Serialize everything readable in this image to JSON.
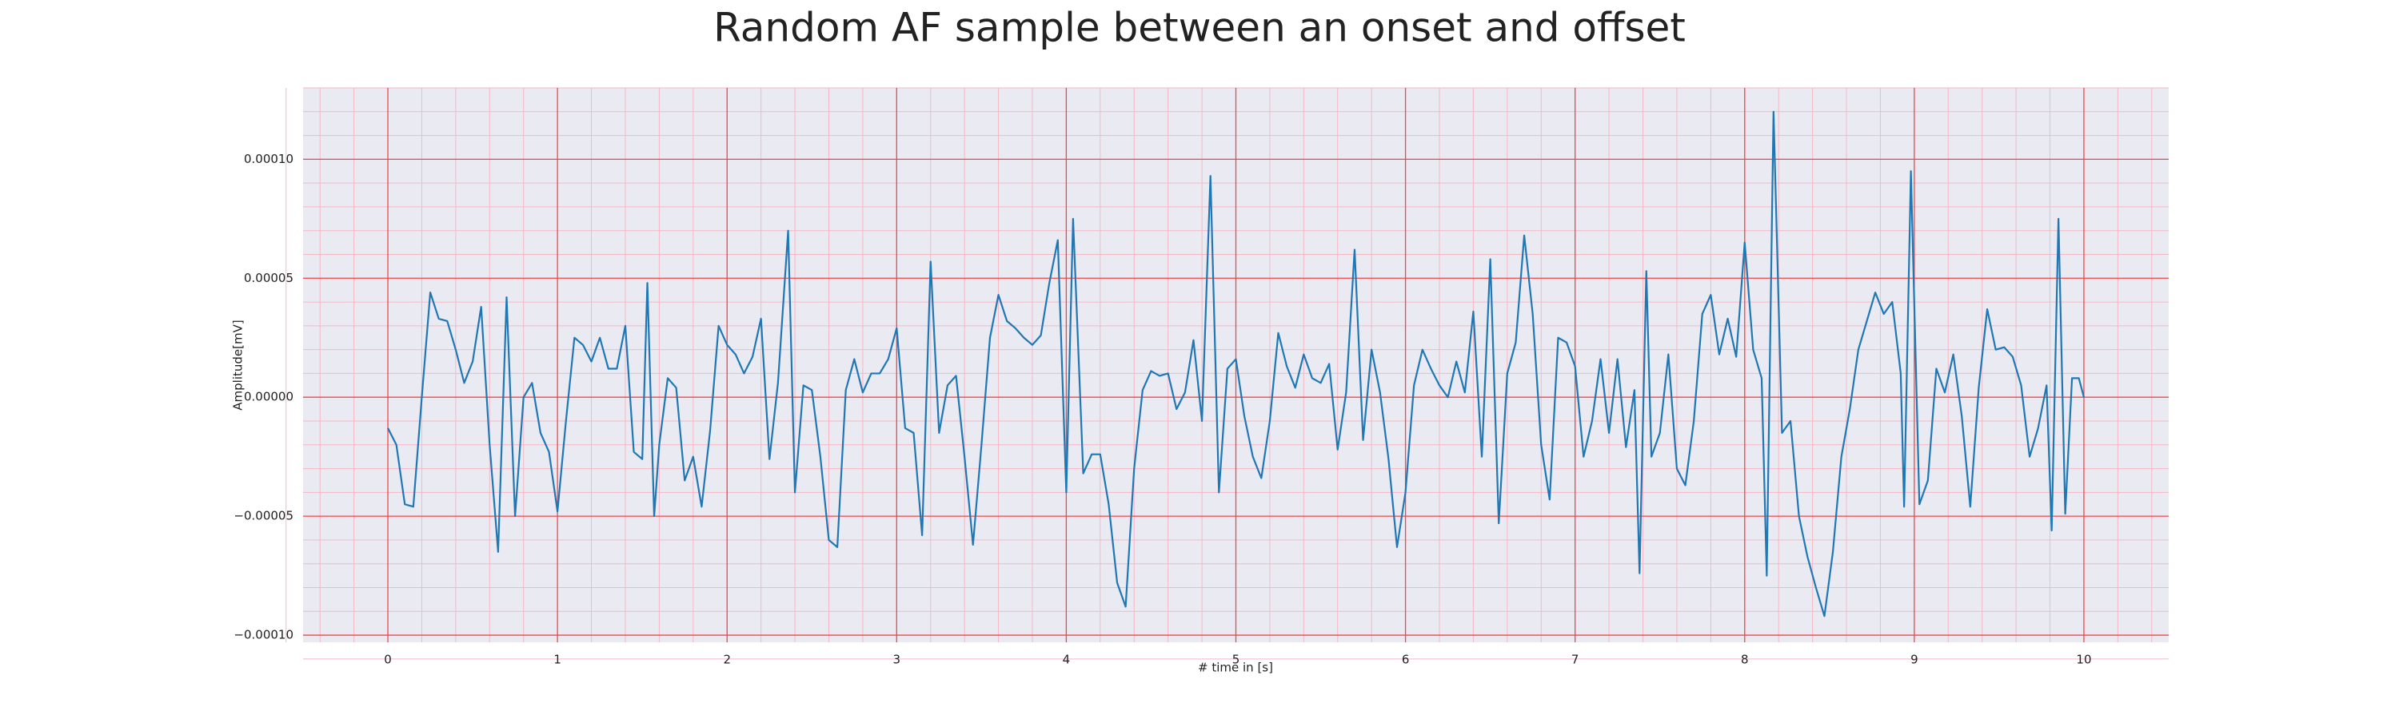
{
  "chart_data": {
    "type": "line",
    "title": "Random AF sample between an onset and offset",
    "x_label": "# time in [s]",
    "y_label": "Amplitude[mV]",
    "color": "#1f77b4",
    "grid": true,
    "minor_grid": true,
    "xlim": [
      -0.5,
      10.5
    ],
    "ylim": [
      -0.000103,
      0.00013
    ],
    "xticks": [
      0,
      1,
      2,
      3,
      4,
      5,
      6,
      7,
      8,
      9,
      10
    ],
    "yticks": [
      {
        "value": -0.0001,
        "label": "−0.00010"
      },
      {
        "value": -5e-05,
        "label": "−0.00005"
      },
      {
        "value": 0,
        "label": "0.00000"
      },
      {
        "value": 5e-05,
        "label": "0.00005"
      },
      {
        "value": 0.0001,
        "label": "0.00010"
      }
    ],
    "x": [
      0,
      0.05,
      0.1,
      0.15,
      0.2,
      0.25,
      0.3,
      0.35,
      0.4,
      0.45,
      0.5,
      0.55,
      0.6,
      0.65,
      0.7,
      0.75,
      0.8,
      0.85,
      0.9,
      0.95,
      1.0,
      1.05,
      1.1,
      1.15,
      1.2,
      1.25,
      1.3,
      1.35,
      1.4,
      1.45,
      1.5,
      1.53,
      1.57,
      1.6,
      1.65,
      1.7,
      1.75,
      1.8,
      1.85,
      1.9,
      1.95,
      2.0,
      2.05,
      2.1,
      2.15,
      2.2,
      2.25,
      2.3,
      2.36,
      2.4,
      2.45,
      2.5,
      2.55,
      2.6,
      2.65,
      2.7,
      2.75,
      2.8,
      2.85,
      2.9,
      2.95,
      3.0,
      3.05,
      3.1,
      3.15,
      3.2,
      3.25,
      3.3,
      3.35,
      3.4,
      3.45,
      3.5,
      3.55,
      3.6,
      3.65,
      3.7,
      3.75,
      3.8,
      3.85,
      3.9,
      3.95,
      4.0,
      4.04,
      4.1,
      4.15,
      4.2,
      4.25,
      4.3,
      4.35,
      4.4,
      4.45,
      4.5,
      4.55,
      4.6,
      4.65,
      4.7,
      4.75,
      4.8,
      4.85,
      4.9,
      4.95,
      5.0,
      5.05,
      5.1,
      5.15,
      5.2,
      5.25,
      5.3,
      5.35,
      5.4,
      5.45,
      5.5,
      5.55,
      5.6,
      5.65,
      5.7,
      5.75,
      5.8,
      5.85,
      5.9,
      5.95,
      6.0,
      6.05,
      6.1,
      6.15,
      6.2,
      6.25,
      6.3,
      6.35,
      6.4,
      6.45,
      6.5,
      6.55,
      6.6,
      6.65,
      6.7,
      6.75,
      6.8,
      6.85,
      6.9,
      6.95,
      7.0,
      7.05,
      7.1,
      7.15,
      7.2,
      7.25,
      7.3,
      7.35,
      7.38,
      7.42,
      7.45,
      7.5,
      7.55,
      7.6,
      7.65,
      7.7,
      7.75,
      7.8,
      7.85,
      7.9,
      7.95,
      8.0,
      8.05,
      8.1,
      8.13,
      8.17,
      8.22,
      8.27,
      8.32,
      8.37,
      8.42,
      8.47,
      8.52,
      8.57,
      8.62,
      8.67,
      8.72,
      8.77,
      8.82,
      8.87,
      8.92,
      8.94,
      8.98,
      9.03,
      9.08,
      9.13,
      9.18,
      9.23,
      9.28,
      9.33,
      9.38,
      9.43,
      9.48,
      9.53,
      9.58,
      9.63,
      9.68,
      9.73,
      9.78,
      9.81,
      9.85,
      9.89,
      9.93,
      9.97,
      10.0
    ],
    "values": [
      -1.3e-05,
      -2e-05,
      -4.5e-05,
      -4.6e-05,
      0,
      4.4e-05,
      3.3e-05,
      3.2e-05,
      2e-05,
      6e-06,
      1.5e-05,
      3.8e-05,
      -2e-05,
      -6.5e-05,
      4.2e-05,
      -5e-05,
      0,
      6e-06,
      -1.5e-05,
      -2.3e-05,
      -4.8e-05,
      -1e-05,
      2.5e-05,
      2.2e-05,
      1.5e-05,
      2.5e-05,
      1.2e-05,
      1.2e-05,
      3e-05,
      -2.3e-05,
      -2.6e-05,
      4.8e-05,
      -5e-05,
      -2e-05,
      8e-06,
      4e-06,
      -3.5e-05,
      -2.5e-05,
      -4.6e-05,
      -1.4e-05,
      3e-05,
      2.2e-05,
      1.8e-05,
      1e-05,
      1.7e-05,
      3.3e-05,
      -2.6e-05,
      6e-06,
      7e-05,
      -4e-05,
      5e-06,
      3e-06,
      -2.5e-05,
      -6e-05,
      -6.3e-05,
      3e-06,
      1.6e-05,
      2e-06,
      1e-05,
      1e-05,
      1.6e-05,
      2.9e-05,
      -1.3e-05,
      -1.5e-05,
      -5.8e-05,
      5.7e-05,
      -1.5e-05,
      5e-06,
      9e-06,
      -2.5e-05,
      -6.2e-05,
      -2e-05,
      2.5e-05,
      4.3e-05,
      3.2e-05,
      2.9e-05,
      2.5e-05,
      2.2e-05,
      2.6e-05,
      4.8e-05,
      6.6e-05,
      -4e-05,
      7.5e-05,
      -3.2e-05,
      -2.4e-05,
      -2.4e-05,
      -4.5e-05,
      -7.8e-05,
      -8.8e-05,
      -3e-05,
      3e-06,
      1.1e-05,
      9e-06,
      1e-05,
      -5e-06,
      2e-06,
      2.4e-05,
      -1e-05,
      9.3e-05,
      -4e-05,
      1.2e-05,
      1.6e-05,
      -8e-06,
      -2.5e-05,
      -3.4e-05,
      -1e-05,
      2.7e-05,
      1.3e-05,
      4e-06,
      1.8e-05,
      8e-06,
      6e-06,
      1.4e-05,
      -2.2e-05,
      2e-06,
      6.2e-05,
      -1.8e-05,
      2e-05,
      2e-06,
      -2.6e-05,
      -6.3e-05,
      -4e-05,
      5e-06,
      2e-05,
      1.2e-05,
      5e-06,
      0,
      1.5e-05,
      2e-06,
      3.6e-05,
      -2.5e-05,
      5.8e-05,
      -5.3e-05,
      1e-05,
      2.3e-05,
      6.8e-05,
      3.5e-05,
      -2e-05,
      -4.3e-05,
      2.5e-05,
      2.3e-05,
      1.3e-05,
      -2.5e-05,
      -1e-05,
      1.6e-05,
      -1.5e-05,
      1.6e-05,
      -2.1e-05,
      3e-06,
      -7.4e-05,
      5.3e-05,
      -2.5e-05,
      -1.5e-05,
      1.8e-05,
      -3e-05,
      -3.7e-05,
      -1e-05,
      3.5e-05,
      4.3e-05,
      1.8e-05,
      3.3e-05,
      1.7e-05,
      6.5e-05,
      2e-05,
      8e-06,
      -7.5e-05,
      0.00012,
      -1.5e-05,
      -1e-05,
      -5e-05,
      -6.7e-05,
      -8e-05,
      -9.2e-05,
      -6.5e-05,
      -2.5e-05,
      -5e-06,
      2e-05,
      3.2e-05,
      4.4e-05,
      3.5e-05,
      4e-05,
      1e-05,
      -4.6e-05,
      9.5e-05,
      -4.5e-05,
      -3.5e-05,
      1.2e-05,
      2e-06,
      1.8e-05,
      -8e-06,
      -4.6e-05,
      4e-06,
      3.7e-05,
      2e-05,
      2.1e-05,
      1.7e-05,
      5e-06,
      -2.5e-05,
      -1.3e-05,
      5e-06,
      -5.6e-05,
      7.5e-05,
      -4.9e-05,
      8e-06,
      8e-06,
      0
    ]
  }
}
